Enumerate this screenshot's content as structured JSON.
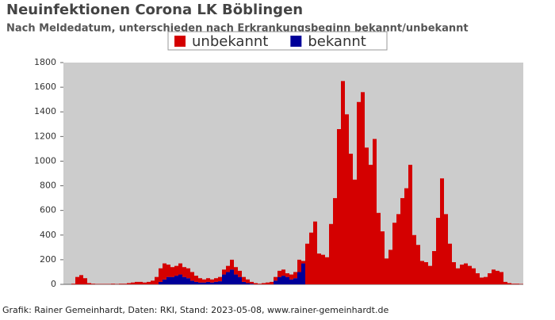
{
  "chart_data": {
    "type": "stacked_bar",
    "title": "Neuinfektionen Corona LK Böblingen",
    "subtitle": "Nach Meldedatum, unterschieden nach Erkrankungsbeginn bekannt/unbekannt",
    "footer": "Grafik: Rainer Gemeinhardt, Daten: RKI, Stand: 2023-05-08, www.rainer-gemeinhardt.de",
    "legend_position": "top",
    "ylim": [
      0,
      1800
    ],
    "yticks": [
      0,
      200,
      400,
      600,
      800,
      1000,
      1200,
      1400,
      1600,
      1800
    ],
    "categories": [
      null,
      null,
      null,
      null,
      null,
      null,
      null,
      null,
      null,
      null,
      null,
      null,
      null,
      null,
      null,
      null,
      null,
      null,
      null,
      null,
      null,
      null,
      null,
      null,
      null,
      null,
      null,
      null,
      null,
      null,
      null,
      null,
      null,
      null,
      null,
      null,
      null,
      null,
      null,
      null,
      null,
      null,
      null,
      null,
      null,
      null,
      null,
      null,
      null,
      null,
      null,
      null,
      null,
      null,
      null,
      null,
      null,
      null,
      null,
      null,
      null,
      null,
      null,
      null,
      null,
      null,
      null,
      null,
      null,
      null,
      null,
      null,
      null,
      null,
      null,
      null,
      null,
      null,
      null,
      null,
      null,
      null,
      null,
      null,
      null,
      null,
      null,
      null,
      null,
      null,
      null,
      null,
      null,
      null,
      null,
      null,
      null,
      null,
      null,
      null,
      null,
      null,
      null,
      null,
      null,
      null,
      null,
      null,
      null,
      null,
      null,
      null,
      null,
      null,
      null,
      null
    ],
    "series": [
      {
        "name": "unbekannt",
        "color": "#d40000",
        "values": [
          0,
          0,
          5,
          60,
          75,
          50,
          10,
          5,
          3,
          3,
          3,
          3,
          5,
          3,
          5,
          5,
          10,
          15,
          20,
          20,
          15,
          20,
          30,
          60,
          110,
          130,
          100,
          80,
          80,
          90,
          80,
          80,
          70,
          50,
          35,
          25,
          30,
          25,
          30,
          35,
          40,
          50,
          80,
          60,
          50,
          40,
          30,
          15,
          10,
          5,
          10,
          15,
          20,
          30,
          50,
          50,
          30,
          40,
          50,
          100,
          20,
          330,
          420,
          510,
          250,
          240,
          220,
          490,
          700,
          1260,
          1650,
          1380,
          1060,
          850,
          1480,
          1560,
          1110,
          970,
          1180,
          580,
          430,
          210,
          280,
          500,
          570,
          700,
          780,
          970,
          400,
          320,
          190,
          180,
          150,
          270,
          540,
          860,
          570,
          330,
          180,
          130,
          160,
          170,
          150,
          130,
          90,
          55,
          60,
          90,
          120,
          110,
          100,
          20,
          10,
          5,
          5,
          3
        ]
      },
      {
        "name": "bekannt",
        "color": "#000099",
        "values": [
          0,
          0,
          0,
          0,
          0,
          0,
          0,
          0,
          0,
          0,
          0,
          0,
          0,
          0,
          0,
          0,
          0,
          0,
          0,
          0,
          0,
          0,
          0,
          0,
          20,
          40,
          60,
          60,
          70,
          80,
          60,
          50,
          30,
          20,
          15,
          15,
          20,
          15,
          20,
          25,
          80,
          100,
          120,
          80,
          60,
          20,
          10,
          5,
          0,
          0,
          0,
          0,
          0,
          30,
          60,
          70,
          60,
          40,
          50,
          100,
          170,
          0,
          0,
          0,
          0,
          0,
          0,
          0,
          0,
          0,
          0,
          0,
          0,
          0,
          0,
          0,
          0,
          0,
          0,
          0,
          0,
          0,
          0,
          0,
          0,
          0,
          0,
          0,
          0,
          0,
          0,
          0,
          0,
          0,
          0,
          0,
          0,
          0,
          0,
          0,
          0,
          0,
          0,
          0,
          0,
          0,
          0,
          0,
          0,
          0,
          0,
          0,
          0,
          0,
          0,
          0
        ]
      }
    ]
  }
}
